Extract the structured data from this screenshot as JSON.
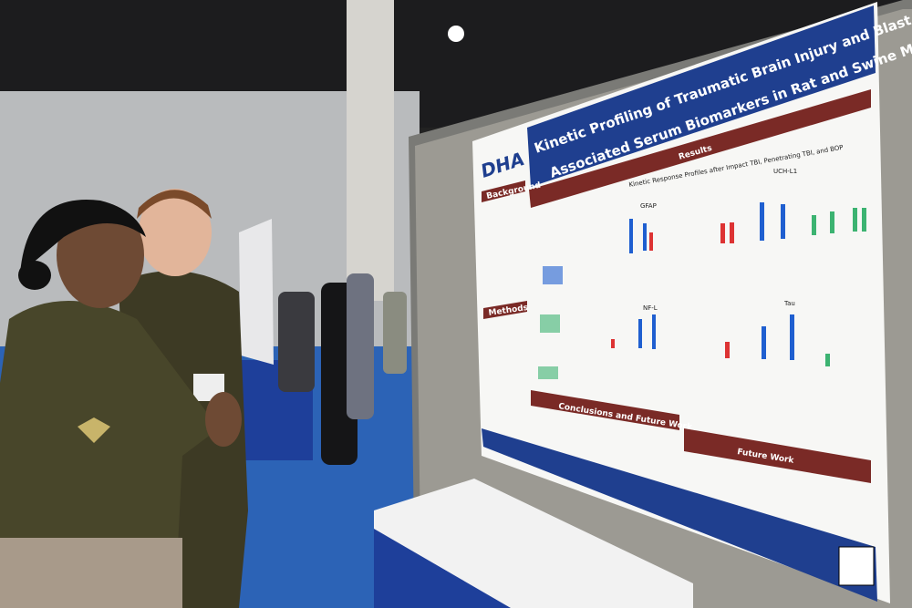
{
  "poster": {
    "title_line1": "Kinetic Profiling of Traumatic Brain Injury and Blast Overpressu",
    "title_line2": "Associated Serum Biomarkers in Rat and Swine Models",
    "logo": "DHA",
    "results_heading": "Results",
    "results_subtitle": "Kinetic Response Profiles after Impact TBI, Penetrating TBI, and BOP",
    "background_heading": "Background",
    "methods_heading": "Methods",
    "conclusions_heading": "Conclusions and Future Work",
    "future_heading": "Future Work",
    "panels": [
      "GFAP",
      "UCH-L1",
      "NF-L",
      "Tau"
    ]
  }
}
